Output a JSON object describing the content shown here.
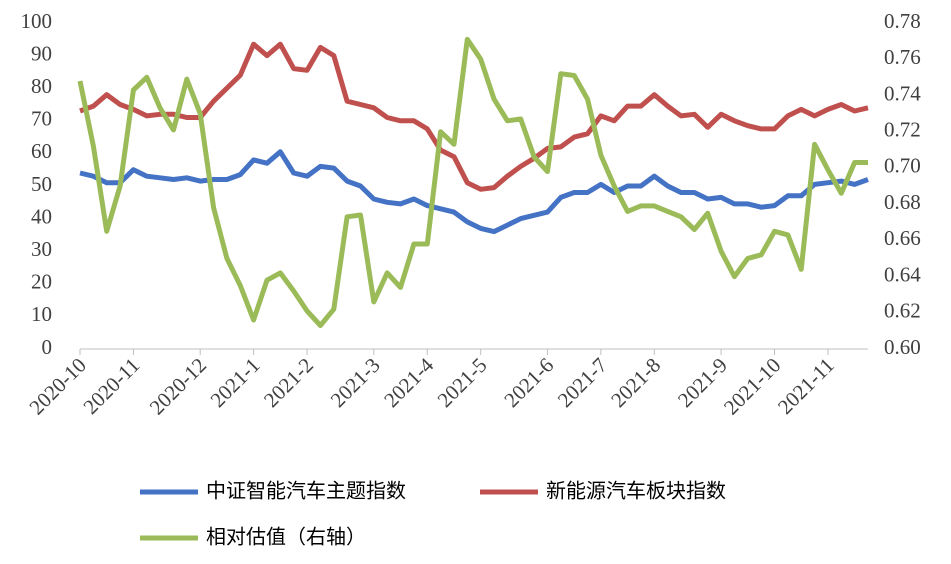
{
  "chart_data": {
    "type": "line",
    "categories": [
      "2020-10",
      null,
      null,
      null,
      "2020-11",
      null,
      null,
      null,
      null,
      "2020-12",
      null,
      null,
      null,
      "2021-1",
      null,
      null,
      null,
      "2021-2",
      null,
      null,
      null,
      null,
      "2021-3",
      null,
      null,
      null,
      "2021-4",
      null,
      null,
      null,
      "2021-5",
      null,
      null,
      null,
      null,
      "2021-6",
      null,
      null,
      null,
      "2021-7",
      null,
      null,
      null,
      "2021-8",
      null,
      null,
      null,
      null,
      "2021-9",
      null,
      null,
      null,
      "2021-10",
      null,
      null,
      null,
      "2021-11",
      null,
      null,
      null
    ],
    "series": [
      {
        "name": "中证智能汽车主题指数",
        "color": "#4472c4",
        "values": [
          54,
          53,
          51,
          51,
          55,
          53,
          52.5,
          52,
          52.5,
          51.5,
          52,
          52,
          53.5,
          58,
          57,
          60.5,
          54,
          53,
          56,
          55.5,
          51.5,
          50,
          46,
          45,
          44.5,
          46,
          44,
          43,
          42,
          39,
          37,
          36,
          38,
          40,
          41,
          42,
          46.5,
          48,
          48,
          50.5,
          48,
          50,
          50,
          53,
          50,
          48,
          48,
          46,
          46.5,
          44.5,
          44.5,
          43.5,
          44,
          47,
          47,
          50.5,
          51,
          51.5,
          50.5,
          52
        ]
      },
      {
        "name": "新能源汽车板块指数",
        "color": "#c0504d",
        "values": [
          73,
          74.5,
          78,
          75,
          73.5,
          71.5,
          72,
          72,
          71,
          71,
          76,
          80,
          84,
          93.5,
          90,
          93.5,
          86,
          85.5,
          92.5,
          90,
          76,
          75,
          74,
          71,
          70,
          70,
          67.5,
          61,
          59,
          51,
          49,
          49.5,
          53,
          56,
          58.5,
          61.5,
          62,
          65,
          66,
          71.5,
          70,
          74.5,
          74.5,
          78,
          74.5,
          71.5,
          72,
          68,
          72,
          70,
          68.5,
          67.5,
          67.5,
          71.5,
          73.5,
          71.5,
          73.5,
          75,
          73,
          74
        ]
      },
      {
        "name": "相对估值（右轴）",
        "color": "#9bbb59",
        "axis": "y2",
        "values": [
          0.748,
          0.712,
          0.665,
          0.69,
          0.743,
          0.75,
          0.733,
          0.721,
          0.749,
          0.73,
          0.678,
          0.65,
          0.635,
          0.616,
          0.638,
          0.642,
          0.632,
          0.621,
          0.613,
          0.622,
          0.673,
          0.674,
          0.626,
          0.642,
          0.634,
          0.658,
          0.658,
          0.72,
          0.713,
          0.771,
          0.76,
          0.738,
          0.726,
          0.727,
          0.706,
          0.698,
          0.752,
          0.751,
          0.738,
          0.707,
          0.69,
          0.676,
          0.679,
          0.679,
          0.676,
          0.673,
          0.666,
          0.675,
          0.654,
          0.64,
          0.65,
          0.652,
          0.665,
          0.663,
          0.644,
          0.713,
          0.699,
          0.686,
          0.703,
          0.703
        ]
      }
    ],
    "ylim": [
      0,
      100
    ],
    "yticks": [
      0,
      10,
      20,
      30,
      40,
      50,
      60,
      70,
      80,
      90,
      100
    ],
    "y2lim": [
      0.6,
      0.78
    ],
    "y2ticks": [
      {
        "value": 0.6,
        "label": "0.60"
      },
      0.62,
      0.64,
      0.66,
      0.68,
      {
        "value": 0.7,
        "label": "0.70"
      },
      0.72,
      0.74,
      0.76,
      0.78
    ],
    "legend": "bottom"
  }
}
